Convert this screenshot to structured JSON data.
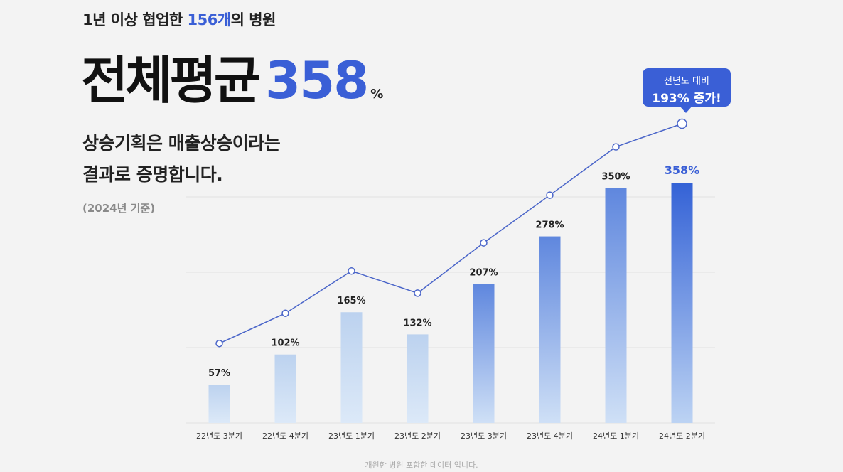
{
  "header": {
    "subtitle_pre": "1년 이상 협업한 ",
    "subtitle_hl": "156개",
    "subtitle_post": "의 병원",
    "headline": "전체평균",
    "headline_value": "358",
    "headline_unit": "%"
  },
  "description": {
    "line1": "상승기획은 매출상승이라는",
    "line2": "결과로 증명합니다."
  },
  "basis": "(2024년 기준)",
  "callout": {
    "line1": "전년도 대비",
    "line2": "193% 증가!"
  },
  "footnote": "개원한 병원 포함한 데이터 입니다.",
  "colors": {
    "accent": "#3a5fd6",
    "bar_light": "#d3e3f6",
    "bar_dark": "#3a66d8",
    "line": "#4a65c9"
  },
  "chart_data": {
    "type": "bar",
    "categories": [
      "22년도 3분기",
      "22년도 4분기",
      "23년도 1분기",
      "23년도 2분기",
      "23년도 3분기",
      "23년도 4분기",
      "24년도 1분기",
      "24년도 2분기"
    ],
    "values": [
      57,
      102,
      165,
      132,
      207,
      278,
      350,
      358
    ],
    "value_labels": [
      "57%",
      "102%",
      "165%",
      "132%",
      "207%",
      "278%",
      "350%",
      "358%"
    ],
    "highlight_index": 7,
    "ylim": [
      0,
      400
    ],
    "grid": true
  }
}
